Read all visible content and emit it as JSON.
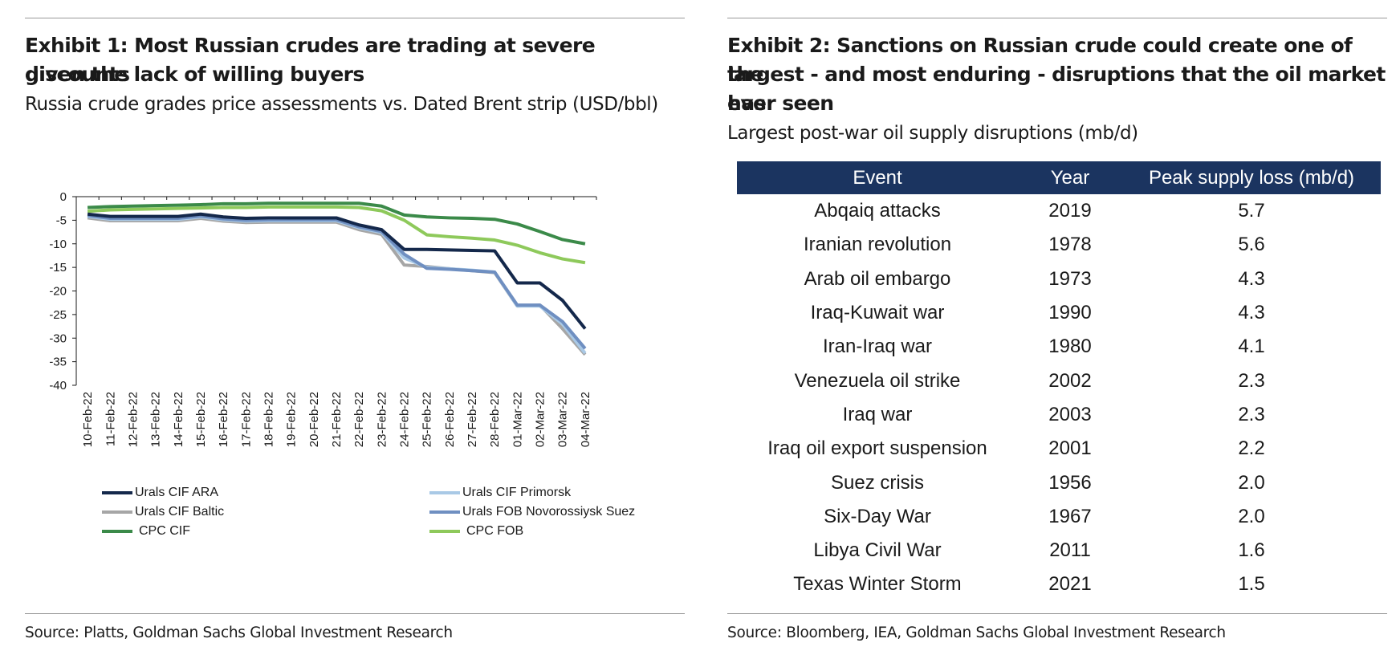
{
  "left": {
    "title_line1": "Exhibit 1: Most Russian crudes are trading at severe discounts",
    "title_line2": "given the lack of willing buyers",
    "subtitle": "Russia crude grades price assessments vs. Dated Brent strip (USD/bbl)",
    "source": "Source: Platts, Goldman Sachs Global Investment Research"
  },
  "right": {
    "title_line1": "Exhibit 2: Sanctions on Russian crude could create one of the",
    "title_line2": "largest - and most enduring - disruptions that the oil market has",
    "title_line3": "ever seen",
    "subtitle": "Largest post-war oil supply disruptions (mb/d)",
    "source": "Source: Bloomberg, IEA, Goldman Sachs Global Investment Research"
  },
  "chart_data": [
    {
      "type": "line",
      "title": "Exhibit 1: Most Russian crudes are trading at severe discounts given the lack of willing buyers",
      "subtitle": "Russia crude grades price assessments vs. Dated Brent strip (USD/bbl)",
      "xlabel": "",
      "ylabel": "",
      "ylim": [
        -40,
        0
      ],
      "yticks": [
        0,
        -5,
        -10,
        -15,
        -20,
        -25,
        -30,
        -35,
        -40
      ],
      "grid": false,
      "legend": "bottom",
      "categories": [
        "10-Feb-22",
        "11-Feb-22",
        "12-Feb-22",
        "13-Feb-22",
        "14-Feb-22",
        "15-Feb-22",
        "16-Feb-22",
        "17-Feb-22",
        "18-Feb-22",
        "19-Feb-22",
        "20-Feb-22",
        "21-Feb-22",
        "22-Feb-22",
        "23-Feb-22",
        "24-Feb-22",
        "25-Feb-22",
        "26-Feb-22",
        "27-Feb-22",
        "28-Feb-22",
        "01-Mar-22",
        "02-Mar-22",
        "03-Mar-22",
        "04-Mar-22"
      ],
      "series": [
        {
          "name": "Urals CIF ARA",
          "color": "#14284b",
          "values": [
            -3.7,
            -4.2,
            -4.2,
            -4.2,
            -4.2,
            -3.7,
            -4.3,
            -4.6,
            -4.5,
            -4.5,
            -4.5,
            -4.5,
            -6.0,
            -7.0,
            -11.2,
            -11.2,
            -11.3,
            -11.4,
            -11.5,
            -18.3,
            -18.3,
            -22.0,
            -28.0
          ]
        },
        {
          "name": "Urals CIF Primorsk",
          "color": "#a9c9e6",
          "values": [
            -4.2,
            -4.8,
            -4.8,
            -4.8,
            -4.8,
            -4.3,
            -4.9,
            -5.2,
            -5.1,
            -5.1,
            -5.1,
            -5.1,
            -6.6,
            -7.6,
            -13.0,
            -15.0,
            -15.3,
            -15.6,
            -16.0,
            -23.2,
            -23.2,
            -27.0,
            -33.2
          ]
        },
        {
          "name": "Urals CIF Baltic",
          "color": "#a6a6a6",
          "values": [
            -4.5,
            -5.1,
            -5.1,
            -5.1,
            -5.1,
            -4.6,
            -5.2,
            -5.5,
            -5.4,
            -5.4,
            -5.4,
            -5.4,
            -7.0,
            -8.0,
            -14.5,
            -14.8,
            -15.3,
            -15.7,
            -16.1,
            -23.2,
            -23.0,
            -28.0,
            -33.5
          ]
        },
        {
          "name": "Urals FOB Novorossiysk Suez",
          "color": "#6f8fc1",
          "values": [
            -4.0,
            -4.6,
            -4.6,
            -4.6,
            -4.6,
            -4.1,
            -4.7,
            -5.0,
            -4.9,
            -4.9,
            -4.9,
            -4.9,
            -6.4,
            -7.4,
            -12.2,
            -15.2,
            -15.4,
            -15.7,
            -16.0,
            -23.0,
            -23.0,
            -26.5,
            -32.2
          ]
        },
        {
          "name": "CPC CIF",
          "color": "#3b8a49",
          "values": [
            -2.3,
            -2.1,
            -2.0,
            -1.9,
            -1.8,
            -1.7,
            -1.5,
            -1.5,
            -1.4,
            -1.4,
            -1.4,
            -1.4,
            -1.4,
            -2.0,
            -3.9,
            -4.3,
            -4.5,
            -4.6,
            -4.8,
            -5.8,
            -7.4,
            -9.1,
            -10.0
          ]
        },
        {
          "name": "CPC FOB",
          "color": "#8ec95b",
          "values": [
            -3.1,
            -2.8,
            -2.7,
            -2.6,
            -2.5,
            -2.4,
            -2.3,
            -2.3,
            -2.2,
            -2.2,
            -2.2,
            -2.2,
            -2.3,
            -3.0,
            -5.0,
            -8.1,
            -8.5,
            -8.8,
            -9.2,
            -10.3,
            -11.9,
            -13.2,
            -14.0
          ]
        }
      ]
    },
    {
      "type": "table",
      "title": "Exhibit 2: Sanctions on Russian crude could create one of the largest - and most enduring - disruptions that the oil market has ever seen",
      "subtitle": "Largest post-war oil supply disruptions (mb/d)",
      "columns": [
        "Event",
        "Year",
        "Peak supply loss (mb/d)"
      ],
      "rows": [
        [
          "Abqaiq attacks",
          "2019",
          "5.7"
        ],
        [
          "Iranian revolution",
          "1978",
          "5.6"
        ],
        [
          "Arab oil embargo",
          "1973",
          "4.3"
        ],
        [
          "Iraq-Kuwait war",
          "1990",
          "4.3"
        ],
        [
          "Iran-Iraq war",
          "1980",
          "4.1"
        ],
        [
          "Venezuela oil strike",
          "2002",
          "2.3"
        ],
        [
          "Iraq war",
          "2003",
          "2.3"
        ],
        [
          "Iraq oil export suspension",
          "2001",
          "2.2"
        ],
        [
          "Suez crisis",
          "1956",
          "2.0"
        ],
        [
          "Six-Day War",
          "1967",
          "2.0"
        ],
        [
          "Libya Civil War",
          "2011",
          "1.6"
        ],
        [
          "Texas Winter Storm",
          "2021",
          "1.5"
        ]
      ]
    }
  ]
}
